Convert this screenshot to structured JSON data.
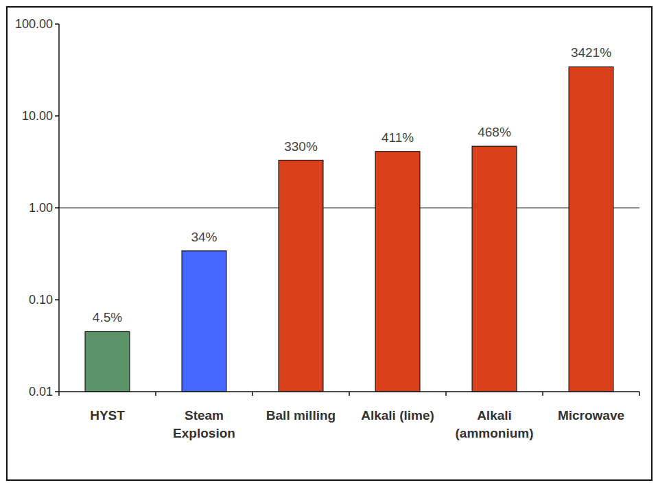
{
  "chart_data": {
    "type": "bar",
    "categories": [
      "HYST",
      "Steam\nExplosion",
      "Ball milling",
      "Alkali (lime)",
      "Alkali\n(ammonium)",
      "Microwave"
    ],
    "values": [
      0.045,
      0.34,
      3.3,
      4.11,
      4.68,
      34.21
    ],
    "value_labels": [
      "4.5%",
      "34%",
      "330%",
      "411%",
      "468%",
      "3421%"
    ],
    "data_labels": true,
    "colors": [
      "#5b9268",
      "#4566ff",
      "#d9401a",
      "#d9401a",
      "#d9401a",
      "#d9401a"
    ],
    "log": "y",
    "ylim": [
      0.01,
      100
    ],
    "yticks": [
      {
        "value": 0.01,
        "label": "0.01"
      },
      {
        "value": 0.1,
        "label": "0.10"
      },
      {
        "value": 1,
        "label": "1.00"
      },
      {
        "value": 10,
        "label": "10.00"
      },
      {
        "value": 100,
        "label": "100.00"
      }
    ],
    "reference_line": 1,
    "grid": false
  }
}
